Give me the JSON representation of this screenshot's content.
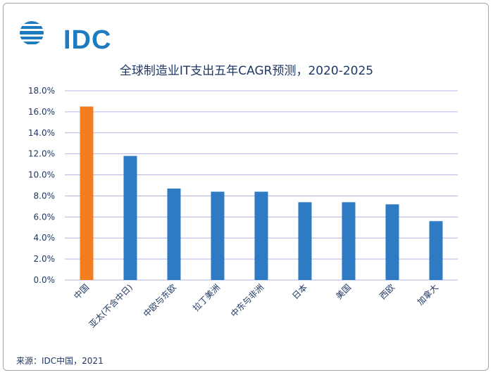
{
  "logo": {
    "text": "IDC",
    "color": "#1f7bc0"
  },
  "source": "来源：IDC中国，2021",
  "colors": {
    "default_bar": "#2e7bc4",
    "highlight_bar": "#f47d20",
    "grid": "#b3b3e6",
    "text": "#1f3864"
  },
  "chart_data": {
    "type": "bar",
    "title": "全球制造业IT支出五年CAGR预测，2020-2025",
    "xlabel": "",
    "ylabel": "",
    "ylim": [
      0,
      18
    ],
    "ytick_step": 2,
    "ytick_labels": [
      "0.0%",
      "2.0%",
      "4.0%",
      "6.0%",
      "8.0%",
      "10.0%",
      "12.0%",
      "14.0%",
      "16.0%",
      "18.0%"
    ],
    "categories": [
      "中国",
      "亚太(不含中日)",
      "中欧与东欧",
      "拉丁美洲",
      "中东与非洲",
      "日本",
      "美国",
      "西欧",
      "加拿大"
    ],
    "values": [
      16.5,
      11.8,
      8.7,
      8.4,
      8.4,
      7.4,
      7.4,
      7.2,
      5.6
    ],
    "highlight": [
      "中国"
    ],
    "grid": true,
    "legend": "none"
  }
}
